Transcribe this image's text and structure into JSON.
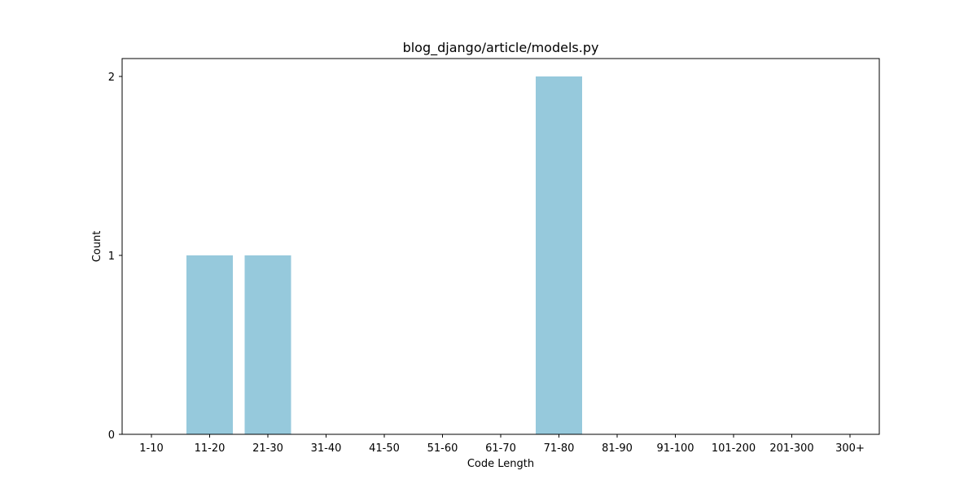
{
  "chart_data": {
    "type": "bar",
    "title": "blog_django/article/models.py",
    "xlabel": "Code Length",
    "ylabel": "Count",
    "categories": [
      "1-10",
      "11-20",
      "21-30",
      "31-40",
      "41-50",
      "51-60",
      "61-70",
      "71-80",
      "81-90",
      "91-100",
      "101-200",
      "201-300",
      "300+"
    ],
    "values": [
      0,
      1,
      1,
      0,
      0,
      0,
      0,
      2,
      0,
      0,
      0,
      0,
      0
    ],
    "yticks": [
      "0",
      "1",
      "2"
    ],
    "ylim": [
      0,
      2.1
    ],
    "grid": false,
    "legend": "none",
    "bar_color": "#96c9dc"
  }
}
